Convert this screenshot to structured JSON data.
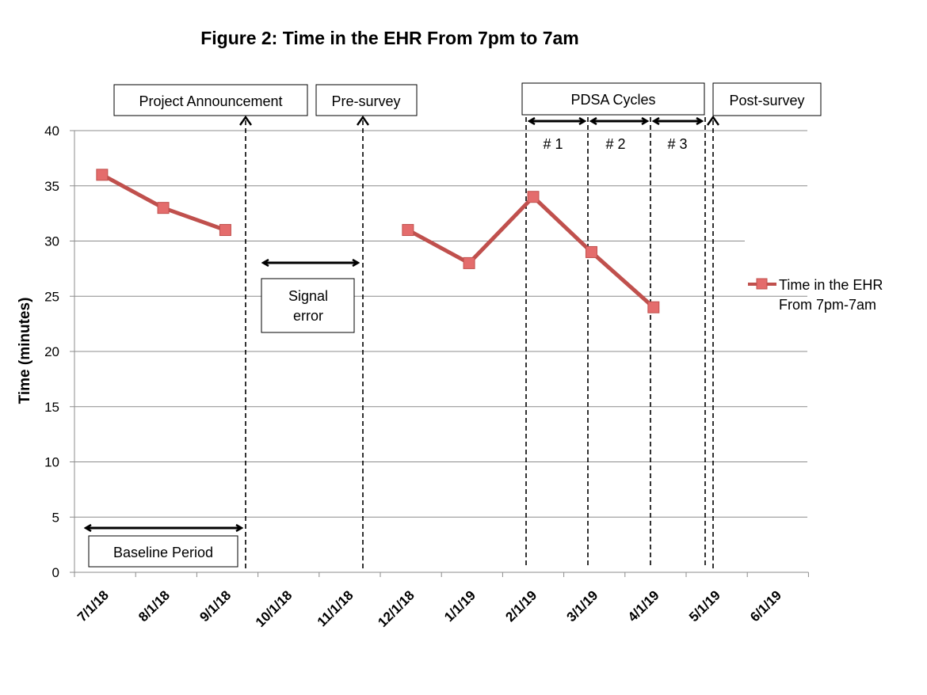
{
  "chart_data": {
    "type": "line",
    "title": "Figure 2: Time in the EHR From 7pm to 7am",
    "ylabel": "Time (minutes)",
    "xlabel": "",
    "ylim": [
      0,
      40
    ],
    "yticks": [
      "0",
      "5",
      "10",
      "15",
      "20",
      "25",
      "30",
      "35",
      "40"
    ],
    "categories": [
      "7/1/18",
      "8/1/18",
      "9/1/18",
      "10/1/18",
      "11/1/18",
      "12/1/18",
      "1/1/19",
      "2/1/19",
      "3/1/19",
      "4/1/19",
      "5/1/19",
      "6/1/19"
    ],
    "series": [
      {
        "name": "Time in the EHR From 7pm-7am",
        "color": "#C0504D",
        "marker_fill": "#E46C6C",
        "points": [
          {
            "x": "7/15/18",
            "y": 36
          },
          {
            "x": "8/15/18",
            "y": 33
          },
          {
            "x": "9/15/18",
            "y": 31
          },
          {
            "x": "12/15/18",
            "y": 31
          },
          {
            "x": "1/15/19",
            "y": 28
          },
          {
            "x": "2/15/19",
            "y": 34
          },
          {
            "x": "3/15/19",
            "y": 29
          },
          {
            "x": "4/15/19",
            "y": 24
          }
        ],
        "segments": [
          [
            0,
            2
          ],
          [
            3,
            7
          ]
        ]
      }
    ],
    "legend": {
      "position": "right",
      "lines": [
        "Time in the EHR",
        "From 7pm-7am"
      ]
    },
    "grid": "horizontal",
    "annotations": {
      "project_announcement": "Project Announcement",
      "pre_survey": "Pre-survey",
      "pdsa_cycles": "PDSA Cycles",
      "post_survey": "Post-survey",
      "cycle_1": "# 1",
      "cycle_2": "# 2",
      "cycle_3": "# 3",
      "signal_error_line1": "Signal",
      "signal_error_line2": "error",
      "baseline_period": "Baseline Period"
    }
  }
}
